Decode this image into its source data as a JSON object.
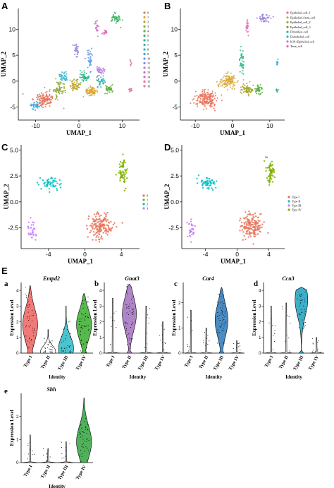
{
  "figure": {
    "panel_labels": [
      "A",
      "B",
      "C",
      "D",
      "E"
    ],
    "sub_labels": [
      "a",
      "b",
      "c",
      "d",
      "e"
    ]
  },
  "chart_data": [
    {
      "id": "A",
      "type": "scatter",
      "xlabel": "UMAP_1",
      "ylabel": "UMAP_2",
      "xlim": [
        -14,
        14
      ],
      "ylim": [
        -7.5,
        14
      ],
      "xticks": [
        -10,
        0,
        10
      ],
      "yticks": [
        -5,
        0,
        5,
        10
      ],
      "legend_position": "right",
      "legend": [
        "0",
        "1",
        "2",
        "3",
        "4",
        "5",
        "6",
        "7",
        "8",
        "9",
        "10",
        "11",
        "12",
        "13",
        "14",
        "15",
        "16"
      ],
      "colors": [
        "#e8735a",
        "#d9a431",
        "#b9a42b",
        "#8ea83a",
        "#5fae3c",
        "#36ae5c",
        "#2db38a",
        "#2bb5ad",
        "#2eb3cc",
        "#35a9e1",
        "#5c98e6",
        "#8b84e3",
        "#b277d9",
        "#cf6ccb",
        "#e064b4",
        "#e66c98",
        "#e87a7a"
      ],
      "clusters": [
        {
          "c": 0,
          "x": -8,
          "y": -3.5,
          "sx": 2.2,
          "sy": 1.3,
          "n": 130
        },
        {
          "c": 1,
          "x": 3,
          "y": -2,
          "sx": 1.4,
          "sy": 0.8,
          "n": 70
        },
        {
          "c": 2,
          "x": -1,
          "y": -0.8,
          "sx": 1.2,
          "sy": 0.9,
          "n": 55
        },
        {
          "c": 3,
          "x": -4.5,
          "y": -1.5,
          "sx": 1.2,
          "sy": 1.4,
          "n": 60
        },
        {
          "c": 4,
          "x": 7,
          "y": -1.5,
          "sx": 0.8,
          "sy": 0.7,
          "n": 40
        },
        {
          "c": 5,
          "x": 8.5,
          "y": 12,
          "sx": 1.4,
          "sy": 0.8,
          "n": 40
        },
        {
          "c": 6,
          "x": 1,
          "y": 0.8,
          "sx": 1.2,
          "sy": 1.0,
          "n": 45
        },
        {
          "c": 7,
          "x": 5,
          "y": 0,
          "sx": 1.0,
          "sy": 0.9,
          "n": 35
        },
        {
          "c": 8,
          "x": -3.5,
          "y": 0.8,
          "sx": 1.0,
          "sy": 0.9,
          "n": 35
        },
        {
          "c": 9,
          "x": -10,
          "y": -4.8,
          "sx": 1.0,
          "sy": 0.7,
          "n": 35
        },
        {
          "c": 10,
          "x": 2.5,
          "y": 4,
          "sx": 0.6,
          "sy": 2.0,
          "n": 35
        },
        {
          "c": 11,
          "x": -0.5,
          "y": 6,
          "sx": 0.6,
          "sy": 1.5,
          "n": 25
        },
        {
          "c": 12,
          "x": 5,
          "y": 2,
          "sx": 1.0,
          "sy": 0.8,
          "n": 30
        },
        {
          "c": 13,
          "x": 4,
          "y": 10.5,
          "sx": 0.4,
          "sy": 1.2,
          "n": 20
        },
        {
          "c": 14,
          "x": 6,
          "y": 9.5,
          "sx": 0.5,
          "sy": 0.4,
          "n": 15
        },
        {
          "c": 15,
          "x": 12,
          "y": -1.7,
          "sx": 0.3,
          "sy": 0.3,
          "n": 10
        },
        {
          "c": 16,
          "x": 12,
          "y": 3.5,
          "sx": 0.2,
          "sy": 0.4,
          "n": 8
        }
      ]
    },
    {
      "id": "B",
      "type": "scatter",
      "xlabel": "UMAP_1",
      "ylabel": "UMAP_2",
      "xlim": [
        -14,
        14
      ],
      "ylim": [
        -7.5,
        14
      ],
      "xticks": [
        -10,
        0,
        10
      ],
      "yticks": [
        -5,
        0,
        5,
        10
      ],
      "legend_position": "right",
      "legend": [
        "Epithelial_cell_1",
        "Epithelial_Stem_cell",
        "Epithelial_cell_2",
        "Epithelial_cell_3",
        "Fibroblast_cell",
        "Endothelial_cell",
        "K18+Epithelial_cell",
        "Taste_cell"
      ],
      "colors": [
        "#e8735a",
        "#d9a431",
        "#a5a72c",
        "#4fae3c",
        "#2db38a",
        "#35a9e1",
        "#9a7fe0",
        "#e066b8"
      ],
      "clusters": [
        {
          "c": 0,
          "x": -7,
          "y": -3.5,
          "sx": 2.6,
          "sy": 1.4,
          "n": 180
        },
        {
          "c": 1,
          "x": -1,
          "y": 0,
          "sx": 2.2,
          "sy": 1.2,
          "n": 110
        },
        {
          "c": 2,
          "x": 4,
          "y": -1.5,
          "sx": 1.6,
          "sy": 0.9,
          "n": 70
        },
        {
          "c": 3,
          "x": 7,
          "y": -1.5,
          "sx": 0.8,
          "sy": 0.7,
          "n": 40
        },
        {
          "c": 4,
          "x": 2.5,
          "y": 4,
          "sx": 0.6,
          "sy": 2.0,
          "n": 40
        },
        {
          "c": 5,
          "x": 12,
          "y": 3.5,
          "sx": 0.2,
          "sy": 0.4,
          "n": 10
        },
        {
          "c": 6,
          "x": 8.5,
          "y": 12,
          "sx": 1.4,
          "sy": 0.8,
          "n": 40
        },
        {
          "c": 7,
          "x": 4,
          "y": 10.5,
          "sx": 0.4,
          "sy": 1.2,
          "n": 20
        },
        {
          "c": 4,
          "x": 12,
          "y": -1.7,
          "sx": 0.3,
          "sy": 0.3,
          "n": 10
        }
      ]
    },
    {
      "id": "C",
      "type": "scatter",
      "xlabel": "UMAP_1",
      "ylabel": "UMAP_2",
      "xlim": [
        -7,
        6
      ],
      "ylim": [
        -4.5,
        5.5
      ],
      "xticks": [
        -4,
        0,
        4
      ],
      "yticks": [
        -2.5,
        0.0,
        2.5,
        5.0
      ],
      "legend_position": "right",
      "legend": [
        "0",
        "1",
        "2",
        "3"
      ],
      "colors": [
        "#e8735a",
        "#7cae00",
        "#00bfc4",
        "#c77cff"
      ],
      "clusters": [
        {
          "c": 0,
          "x": 1.8,
          "y": -2.3,
          "sx": 1.2,
          "sy": 1.1,
          "n": 160
        },
        {
          "c": 1,
          "x": 4.2,
          "y": 2.8,
          "sx": 0.5,
          "sy": 1.2,
          "n": 60
        },
        {
          "c": 2,
          "x": -3.8,
          "y": 1.8,
          "sx": 1.0,
          "sy": 0.5,
          "n": 55
        },
        {
          "c": 3,
          "x": -5.8,
          "y": -2.7,
          "sx": 0.4,
          "sy": 0.9,
          "n": 30
        }
      ]
    },
    {
      "id": "D",
      "type": "scatter",
      "xlabel": "UMAP_1",
      "ylabel": "UMAP_2",
      "xlim": [
        -7,
        6
      ],
      "ylim": [
        -4.5,
        5.5
      ],
      "xticks": [
        -4,
        0,
        4
      ],
      "yticks": [
        -2.5,
        0.0,
        2.5,
        5.0
      ],
      "legend_position": "right",
      "legend": [
        "Type I",
        "Type II",
        "Type III",
        "Type IV"
      ],
      "colors": [
        "#e8735a",
        "#00bfc4",
        "#c77cff",
        "#7cae00"
      ],
      "clusters": [
        {
          "c": 0,
          "x": 1.8,
          "y": -2.3,
          "sx": 1.2,
          "sy": 1.1,
          "n": 160
        },
        {
          "c": 3,
          "x": 4.2,
          "y": 2.8,
          "sx": 0.5,
          "sy": 1.2,
          "n": 60
        },
        {
          "c": 1,
          "x": -3.8,
          "y": 1.8,
          "sx": 1.0,
          "sy": 0.5,
          "n": 55
        },
        {
          "c": 2,
          "x": -5.8,
          "y": -2.7,
          "sx": 0.4,
          "sy": 0.9,
          "n": 30
        }
      ]
    },
    {
      "id": "E",
      "type": "violin",
      "ylabel": "Expression Level",
      "xlabel": "Identity",
      "categories": [
        "Type I",
        "Type II",
        "Type III",
        "Type IV"
      ],
      "colors": [
        "#e8735a",
        "#7cae00",
        "#00bfc4",
        "#c77cff"
      ],
      "genes": [
        {
          "sub": "a",
          "title": "Entpd2",
          "ylim": [
            0,
            4.5
          ],
          "yticks": [
            0,
            1,
            2,
            3,
            4
          ],
          "fill": [
            "#f07a78",
            "#ffffff",
            "#4cc4d0",
            "#56b94c"
          ],
          "max": [
            4.3,
            1.5,
            3.0,
            3.8
          ],
          "bulk": [
            1.8,
            0.1,
            0.3,
            1.8
          ]
        },
        {
          "sub": "b",
          "title": "Gnat3",
          "ylim": [
            0,
            4.5
          ],
          "yticks": [
            0,
            1,
            2,
            3,
            4
          ],
          "fill": [
            "#ffffff",
            "#b085c9",
            "#ffffff",
            "#ffffff"
          ],
          "max": [
            3.5,
            4.4,
            3.0,
            2.0
          ],
          "bulk": [
            0.0,
            2.5,
            0.0,
            0.0
          ]
        },
        {
          "sub": "c",
          "title": "Car4",
          "ylim": [
            0,
            2.8
          ],
          "yticks": [
            0,
            1,
            2
          ],
          "fill": [
            "#ffffff",
            "#ffffff",
            "#4a8cc4",
            "#ffffff"
          ],
          "max": [
            1.7,
            1.0,
            2.6,
            0.5
          ],
          "bulk": [
            0.0,
            0.0,
            1.3,
            0.0
          ]
        },
        {
          "sub": "d",
          "title": "Ccn3",
          "ylim": [
            0,
            4.5
          ],
          "yticks": [
            0,
            1,
            2,
            3,
            4
          ],
          "fill": [
            "#ffffff",
            "#ffffff",
            "#3faec8",
            "#ffffff"
          ],
          "max": [
            3.0,
            3.2,
            4.2,
            1.0
          ],
          "bulk": [
            0.0,
            0.0,
            3.4,
            0.0
          ]
        },
        {
          "sub": "e",
          "title": "Shh",
          "ylim": [
            0,
            3.0
          ],
          "yticks": [
            0,
            1,
            2
          ],
          "fill": [
            "#ffffff",
            "#ffffff",
            "#ffffff",
            "#4fb25a"
          ],
          "max": [
            1.2,
            0.6,
            0.9,
            2.8
          ],
          "bulk": [
            0.0,
            0.0,
            0.0,
            0.9
          ]
        }
      ]
    }
  ]
}
